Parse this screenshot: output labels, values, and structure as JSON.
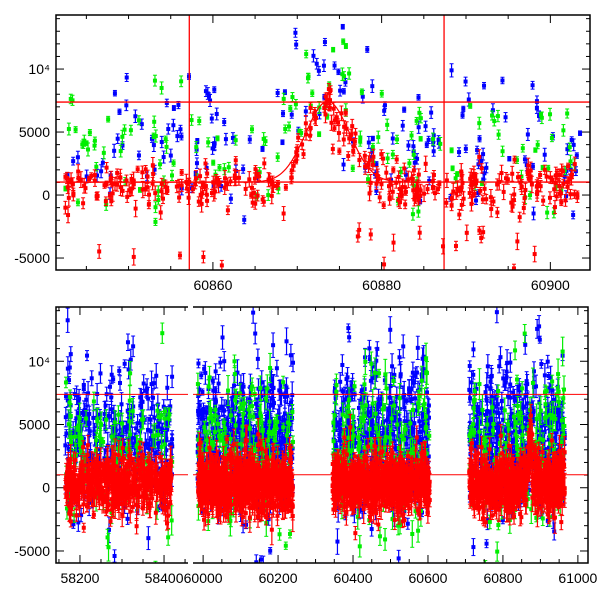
{
  "chart_data": [
    {
      "panel": "zoom",
      "type": "scatter",
      "title": "",
      "xlabel": "",
      "ylabel": "",
      "xlim": [
        60841.4,
        60904.7
      ],
      "ylim": [
        -5950,
        14290
      ],
      "grid": false,
      "xticks": [
        {
          "value": 60860,
          "label": "60860"
        },
        {
          "value": 60880,
          "label": "60880"
        },
        {
          "value": 60900,
          "label": "60900"
        }
      ],
      "yticks": [
        {
          "value": -5000,
          "label": "-5000"
        },
        {
          "value": 0,
          "label": "0"
        },
        {
          "value": 5000,
          "label": "5000"
        },
        {
          "value": 10000,
          "label": "10⁴"
        }
      ],
      "hlines": [
        1030,
        7380
      ],
      "vlines": [
        60857.2,
        60887.4
      ],
      "model": {
        "color": "#ff0000",
        "center": 60873.6,
        "amplitude": 6400,
        "sigma": 2.6,
        "baseline": 1030
      },
      "series": [
        {
          "name": "blue",
          "color": "#0000ff",
          "count": 170,
          "mean": 4300,
          "scatter": 2600,
          "err": 350,
          "follows_model": false
        },
        {
          "name": "green",
          "color": "#00ee00",
          "count": 150,
          "mean": 3200,
          "scatter": 2200,
          "err": 350,
          "follows_model": false
        },
        {
          "name": "red",
          "color": "#ff0000",
          "count": 380,
          "mean": 700,
          "scatter": 900,
          "err": 450,
          "follows_model": true
        }
      ]
    },
    {
      "panel": "full",
      "type": "scatter",
      "title": "",
      "xlabel": "",
      "ylabel": "",
      "segments": [
        {
          "xlim": [
            58143,
            58457
          ],
          "data_range": [
            58165,
            58420
          ]
        },
        {
          "xlim": [
            59973,
            61027
          ],
          "data_range": [
            59985,
            60240
          ]
        },
        {
          "xlim": [
            59973,
            61027
          ],
          "data_range": [
            60345,
            60605
          ]
        },
        {
          "xlim": [
            59973,
            61027
          ],
          "data_range": [
            60710,
            60965
          ]
        }
      ],
      "ylim": [
        -5950,
        14290
      ],
      "grid": false,
      "xticks": [
        {
          "segment": 0,
          "value": 58200,
          "label": "58200"
        },
        {
          "segment": 0,
          "value": 58400,
          "label": "58400"
        },
        {
          "segment": 1,
          "value": 60000,
          "label": "60000"
        },
        {
          "segment": 1,
          "value": 60200,
          "label": "60200"
        },
        {
          "segment": 1,
          "value": 60400,
          "label": "60400"
        },
        {
          "segment": 1,
          "value": 60600,
          "label": "60600"
        },
        {
          "segment": 1,
          "value": 60800,
          "label": "60800"
        },
        {
          "segment": 1,
          "value": 61000,
          "label": "61000"
        }
      ],
      "yticks": [
        {
          "value": -5000,
          "label": "-5000"
        },
        {
          "value": 0,
          "label": "0"
        },
        {
          "value": 5000,
          "label": "5000"
        },
        {
          "value": 10000,
          "label": "10⁴"
        }
      ],
      "hlines": [
        1030,
        7380
      ],
      "series": [
        {
          "name": "blue",
          "color": "#0000ff",
          "count_per_season": 420,
          "mean": 3800,
          "scatter": 3200,
          "err": 600
        },
        {
          "name": "green",
          "color": "#00ee00",
          "count_per_season": 160,
          "mean": 3200,
          "scatter": 3300,
          "err": 700
        },
        {
          "name": "red",
          "color": "#ff0000",
          "count_per_season": 650,
          "mean": 300,
          "scatter": 1200,
          "err": 700
        }
      ]
    }
  ]
}
